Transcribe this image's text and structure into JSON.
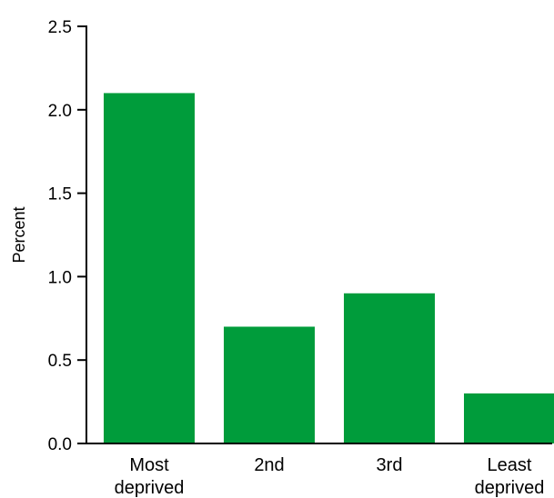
{
  "chart_data": {
    "type": "bar",
    "title": "",
    "xlabel": "",
    "ylabel": "Percent",
    "ylim": [
      0,
      2.5
    ],
    "yticks": [
      "0.0",
      "0.5",
      "1.0",
      "1.5",
      "2.0",
      "2.5"
    ],
    "categories": [
      [
        "Most",
        "deprived"
      ],
      [
        "2nd"
      ],
      [
        "3rd"
      ],
      [
        "Least",
        "deprived"
      ]
    ],
    "values": [
      2.1,
      0.7,
      0.9,
      0.3
    ],
    "bar_color": "#009c3b",
    "grid": false,
    "legend": "none"
  }
}
